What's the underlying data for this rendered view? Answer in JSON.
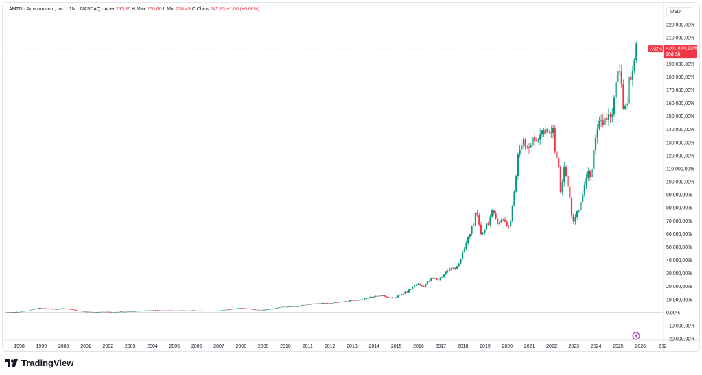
{
  "legend": {
    "symbol": "AMZN · Amazon.com, Inc. · 1M · NASDAQ",
    "open_label": "Aper.",
    "open": "255,36",
    "high_label": "H",
    "high_label2": "Max.",
    "high": "258,60",
    "low_label": "L",
    "low_label2": "Min.",
    "low": "238,49",
    "close_label": "C",
    "close_label2": "Chius.",
    "close": "245,83",
    "change": "+1,60 (+0,66%)"
  },
  "currency": "USD",
  "brand": "TradingView",
  "price_badge": {
    "ticker": "AMZN",
    "value": "+201.604,22%",
    "countdown": "16d 3h"
  },
  "colors": {
    "up": "#089981",
    "down": "#f23645",
    "axis_text": "#131722",
    "badge": "#f23645",
    "grid": "#f0f3fa"
  },
  "chart_data": {
    "type": "candlestick",
    "y_scale": "percentage",
    "y_unit": "%",
    "ylim": [
      -20000,
      220000
    ],
    "y_ticks": [
      "220.000,00%",
      "210.000,00%",
      "200.000,00%",
      "190.000,00%",
      "180.000,00%",
      "170.000,00%",
      "160.000,00%",
      "150.000,00%",
      "140.000,00%",
      "130.000,00%",
      "120.000,00%",
      "110.000,00%",
      "100.000,00%",
      "90.000,00%",
      "80.000,00%",
      "70.000,00%",
      "60.000,00%",
      "50.000,00%",
      "40.000,00%",
      "30.000,00%",
      "20.000,00%",
      "10.000,00%",
      "0,00%",
      "−10.000,00%",
      "−20.000,00%"
    ],
    "x_ticks": [
      "1998",
      "1999",
      "2000",
      "2001",
      "2002",
      "2003",
      "2004",
      "2005",
      "2006",
      "2007",
      "2008",
      "2009",
      "2010",
      "2011",
      "2012",
      "2013",
      "2014",
      "2015",
      "2016",
      "2017",
      "2018",
      "2019",
      "2020",
      "2021",
      "2022",
      "2023",
      "2024",
      "2025",
      "2026",
      "202"
    ],
    "series": [
      {
        "name": "AMZN",
        "points": [
          [
            1997.4,
            200
          ],
          [
            1998.0,
            500
          ],
          [
            1998.5,
            1800
          ],
          [
            1998.9,
            3500
          ],
          [
            1999.3,
            3000
          ],
          [
            1999.7,
            2500
          ],
          [
            2000.0,
            3200
          ],
          [
            2000.3,
            2500
          ],
          [
            2000.6,
            1500
          ],
          [
            2000.9,
            800
          ],
          [
            2001.3,
            400
          ],
          [
            2001.7,
            600
          ],
          [
            2002.2,
            500
          ],
          [
            2002.6,
            700
          ],
          [
            2003.0,
            900
          ],
          [
            2003.5,
            1400
          ],
          [
            2004.0,
            1900
          ],
          [
            2004.5,
            1700
          ],
          [
            2005.0,
            1500
          ],
          [
            2005.5,
            1600
          ],
          [
            2006.0,
            1600
          ],
          [
            2006.5,
            1300
          ],
          [
            2007.0,
            1500
          ],
          [
            2007.5,
            2500
          ],
          [
            2007.9,
            3500
          ],
          [
            2008.3,
            3000
          ],
          [
            2008.7,
            2000
          ],
          [
            2009.0,
            2000
          ],
          [
            2009.5,
            3000
          ],
          [
            2009.9,
            4500
          ],
          [
            2010.5,
            4500
          ],
          [
            2010.9,
            6000
          ],
          [
            2011.5,
            7000
          ],
          [
            2011.9,
            7000
          ],
          [
            2012.5,
            8000
          ],
          [
            2012.9,
            9000
          ],
          [
            2013.5,
            10000
          ],
          [
            2013.9,
            12000
          ],
          [
            2014.3,
            13000
          ],
          [
            2014.7,
            11000
          ],
          [
            2015.0,
            12000
          ],
          [
            2015.5,
            16000
          ],
          [
            2015.9,
            22000
          ],
          [
            2016.2,
            20000
          ],
          [
            2016.6,
            26000
          ],
          [
            2016.9,
            25000
          ],
          [
            2017.3,
            32000
          ],
          [
            2017.7,
            35000
          ],
          [
            2017.9,
            40000
          ],
          [
            2018.2,
            55000
          ],
          [
            2018.6,
            75000
          ],
          [
            2018.8,
            60000
          ],
          [
            2019.0,
            65000
          ],
          [
            2019.3,
            75000
          ],
          [
            2019.6,
            70000
          ],
          [
            2019.9,
            70000
          ],
          [
            2020.1,
            65000
          ],
          [
            2020.3,
            90000
          ],
          [
            2020.5,
            120000
          ],
          [
            2020.7,
            135000
          ],
          [
            2020.9,
            128000
          ],
          [
            2021.2,
            130000
          ],
          [
            2021.5,
            138000
          ],
          [
            2021.8,
            135000
          ],
          [
            2022.0,
            140000
          ],
          [
            2022.2,
            125000
          ],
          [
            2022.4,
            95000
          ],
          [
            2022.6,
            110000
          ],
          [
            2022.8,
            88000
          ],
          [
            2022.95,
            70000
          ],
          [
            2023.1,
            72000
          ],
          [
            2023.3,
            82000
          ],
          [
            2023.5,
            100000
          ],
          [
            2023.7,
            105000
          ],
          [
            2023.9,
            120000
          ],
          [
            2024.1,
            140000
          ],
          [
            2024.3,
            145000
          ],
          [
            2024.5,
            150000
          ],
          [
            2024.7,
            145000
          ],
          [
            2024.9,
            170000
          ],
          [
            2025.0,
            190000
          ],
          [
            2025.1,
            175000
          ],
          [
            2025.3,
            150000
          ],
          [
            2025.5,
            175000
          ],
          [
            2025.7,
            180000
          ],
          [
            2025.8,
            201604
          ]
        ]
      }
    ]
  }
}
